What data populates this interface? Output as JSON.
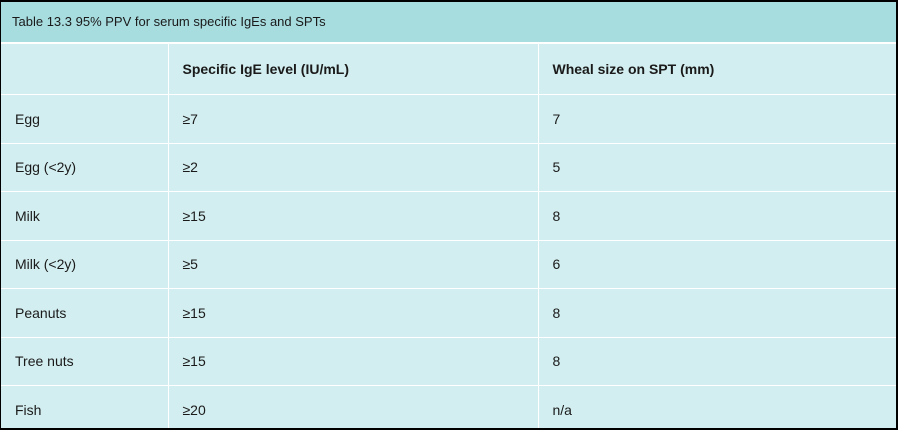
{
  "caption": "Table 13.3 95% PPV for serum specific IgEs and SPTs",
  "headers": [
    "",
    "Specific IgE level (IU/mL)",
    "Wheal size on SPT (mm)"
  ],
  "rows": [
    [
      "Egg",
      "≥7",
      "7"
    ],
    [
      "Egg (<2y)",
      "≥2",
      "5"
    ],
    [
      "Milk",
      "≥15",
      "8"
    ],
    [
      "Milk (<2y)",
      "≥5",
      "6"
    ],
    [
      "Peanuts",
      "≥15",
      "8"
    ],
    [
      "Tree nuts",
      "≥15",
      "8"
    ],
    [
      "Fish",
      "≥20",
      "n/a"
    ]
  ],
  "colors": {
    "caption_background": "#a8dde0",
    "table_background": "#d3eef0",
    "border": "#ffffff"
  }
}
